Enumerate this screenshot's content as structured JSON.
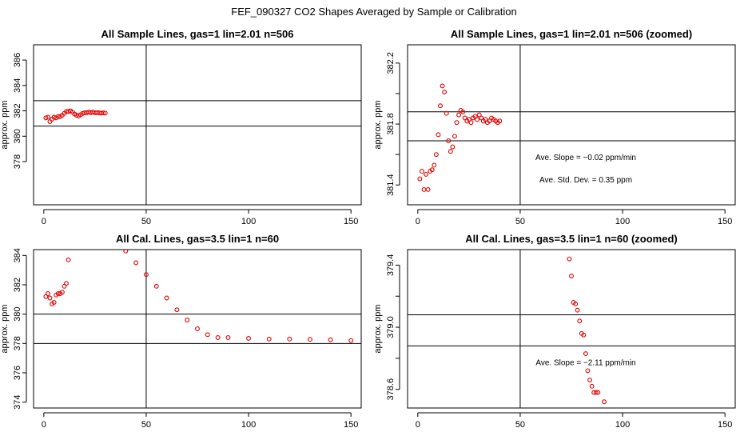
{
  "figure": {
    "suptitle": "FEF_090327  CO2 Shapes Averaged by Sample or Calibration",
    "point_color": "#e00000",
    "line_color": "#000000"
  },
  "chart_data": [
    {
      "type": "scatter",
      "title": "All Sample Lines, gas=1 lin=2.01 n=506",
      "ylabel": "approx. ppm",
      "xlabel": "",
      "xlim": [
        -5,
        155
      ],
      "ylim": [
        374.6,
        387.2
      ],
      "xticks": [
        0,
        50,
        100,
        150
      ],
      "yticks": [
        378,
        380,
        382,
        384,
        386
      ],
      "hlines": [
        382.8,
        380.8
      ],
      "vline": 50,
      "notes": [],
      "series": [
        {
          "name": "sample",
          "x": [
            1,
            2,
            3,
            4,
            5,
            6,
            7,
            8,
            9,
            10,
            11,
            12,
            13,
            14,
            15,
            16,
            17,
            18,
            19,
            20,
            21,
            22,
            23,
            24,
            25,
            26,
            27,
            28,
            29,
            30
          ],
          "y": [
            381.45,
            381.5,
            381.15,
            381.35,
            381.5,
            381.45,
            381.55,
            381.55,
            381.65,
            381.8,
            381.95,
            381.95,
            382.0,
            381.9,
            381.75,
            381.65,
            381.6,
            381.7,
            381.8,
            381.85,
            381.85,
            381.9,
            381.85,
            381.9,
            381.85,
            381.85,
            381.85,
            381.82,
            381.84,
            381.82
          ]
        }
      ]
    },
    {
      "type": "scatter",
      "title": "All Sample Lines, gas=1 lin=2.01 n=506 (zoomed)",
      "ylabel": "approx. ppm",
      "xlabel": "",
      "xlim": [
        -5,
        155
      ],
      "ylim": [
        381.27,
        382.32
      ],
      "xticks": [
        0,
        50,
        100,
        150
      ],
      "yticks": [
        381.4,
        381.6,
        381.8,
        382.0,
        382.2
      ],
      "ytick_labels": [
        "381.4",
        "",
        "381.8",
        "",
        "382.2"
      ],
      "hlines": [
        381.88,
        381.69
      ],
      "vline": 50,
      "notes": [
        "Ave. Slope = -0.02  ppm/min",
        "Ave. Std. Dev. = 0.35  ppm"
      ],
      "series": [
        {
          "name": "sample zoomed",
          "x": [
            1,
            2,
            3,
            4,
            5,
            6,
            7,
            8,
            9,
            10,
            11,
            12,
            13,
            14,
            15,
            16,
            17,
            18,
            19,
            20,
            21,
            22,
            23,
            24,
            25,
            26,
            27,
            28,
            29,
            30,
            31,
            32,
            33,
            34,
            35,
            36,
            37,
            38,
            39,
            40
          ],
          "y": [
            381.44,
            381.49,
            381.37,
            381.47,
            381.37,
            381.49,
            381.5,
            381.53,
            381.6,
            381.73,
            381.92,
            382.05,
            382.01,
            381.87,
            381.69,
            381.62,
            381.65,
            381.72,
            381.81,
            381.86,
            381.89,
            381.88,
            381.84,
            381.82,
            381.83,
            381.81,
            381.84,
            381.85,
            381.83,
            381.86,
            381.84,
            381.82,
            381.83,
            381.81,
            381.82,
            381.84,
            381.83,
            381.82,
            381.81,
            381.82
          ]
        }
      ]
    },
    {
      "type": "scatter",
      "title": "All Cal. Lines, gas=3.5 lin=1 n=60",
      "ylabel": "approx. ppm",
      "xlabel": "",
      "xlim": [
        -5,
        155
      ],
      "ylim": [
        373.6,
        384.4
      ],
      "xticks": [
        0,
        50,
        100,
        150
      ],
      "yticks": [
        374,
        376,
        378,
        380,
        382,
        384
      ],
      "hlines": [
        380.0,
        378.0
      ],
      "vline": 50,
      "notes": [],
      "series": [
        {
          "name": "calibration",
          "x": [
            1,
            2,
            3,
            4,
            5,
            6,
            7,
            8,
            9,
            10,
            11,
            12,
            40,
            45,
            50,
            55,
            60,
            65,
            70,
            75,
            80,
            85,
            90,
            100,
            110,
            120,
            130,
            140,
            150
          ],
          "y": [
            381.2,
            381.4,
            381.1,
            380.7,
            380.8,
            381.3,
            381.4,
            381.4,
            381.5,
            381.9,
            382.1,
            383.7,
            384.3,
            383.5,
            382.7,
            381.9,
            381.1,
            380.3,
            379.6,
            379.0,
            378.6,
            378.4,
            378.4,
            378.35,
            378.3,
            378.3,
            378.28,
            378.25,
            378.2
          ]
        }
      ]
    },
    {
      "type": "scatter",
      "title": "All Cal. Lines, gas=3.5 lin=1 n=60 (zoomed)",
      "ylabel": "approx. ppm",
      "xlabel": "",
      "xlim": [
        -5,
        155
      ],
      "ylim": [
        378.48,
        379.5
      ],
      "xticks": [
        0,
        50,
        100,
        150
      ],
      "yticks": [
        378.6,
        378.8,
        379.0,
        379.2,
        379.4
      ],
      "ytick_labels": [
        "378.6",
        "",
        "379.0",
        "",
        "379.4"
      ],
      "hlines": [
        379.08,
        378.88
      ],
      "vline": 50,
      "notes": [
        "Ave. Slope = -2.11  ppm/min"
      ],
      "series": [
        {
          "name": "calibration zoomed",
          "x": [
            74,
            75,
            76,
            77,
            78,
            79,
            80,
            81,
            82,
            83,
            84,
            85,
            86,
            87,
            88,
            91
          ],
          "y": [
            379.44,
            379.33,
            379.16,
            379.15,
            379.11,
            379.04,
            378.96,
            378.95,
            378.83,
            378.72,
            378.66,
            378.62,
            378.58,
            378.58,
            378.58,
            378.52
          ]
        }
      ]
    }
  ]
}
